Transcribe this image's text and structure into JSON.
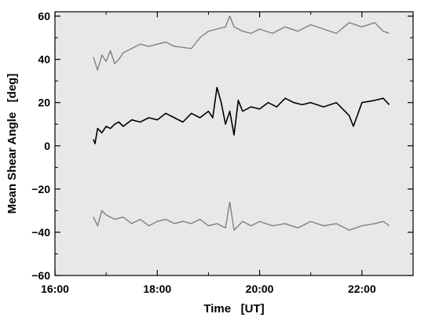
{
  "chart_data": {
    "type": "line",
    "xlabel": "Time   [UT]",
    "ylabel": "Mean Shear Angle   [deg]",
    "title": "",
    "xlim": [
      "16:00",
      "23:00"
    ],
    "ylim": [
      -60,
      62
    ],
    "xticks": [
      "16:00",
      "18:00",
      "20:00",
      "22:00"
    ],
    "yticks": [
      -60,
      -40,
      -20,
      0,
      20,
      40,
      60
    ],
    "grid": false,
    "legend": "none",
    "plot_background": "#e8e8e8",
    "series": [
      {
        "color": "#808080",
        "x": [
          "16:45",
          "16:50",
          "16:55",
          "17:00",
          "17:05",
          "17:10",
          "17:15",
          "17:20",
          "17:25",
          "17:30",
          "17:40",
          "17:50",
          "18:00",
          "18:10",
          "18:20",
          "18:40",
          "18:50",
          "19:00",
          "19:10",
          "19:20",
          "19:25",
          "19:30",
          "19:40",
          "19:50",
          "20:00",
          "20:15",
          "20:30",
          "20:45",
          "21:00",
          "21:15",
          "21:30",
          "21:45",
          "22:00",
          "22:15",
          "22:25",
          "22:32"
        ],
        "y": [
          41,
          35,
          42,
          39,
          44,
          38,
          40,
          43,
          44,
          45,
          47,
          46,
          47,
          48,
          46,
          45,
          50,
          53,
          54,
          55,
          60,
          55,
          53,
          52,
          54,
          52,
          55,
          53,
          56,
          54,
          52,
          57,
          55,
          57,
          53,
          52
        ]
      },
      {
        "color": "#000000",
        "x": [
          "16:45",
          "16:47",
          "16:50",
          "16:55",
          "17:00",
          "17:05",
          "17:10",
          "17:15",
          "17:20",
          "17:30",
          "17:40",
          "17:50",
          "18:00",
          "18:10",
          "18:20",
          "18:30",
          "18:40",
          "18:50",
          "19:00",
          "19:05",
          "19:10",
          "19:15",
          "19:20",
          "19:25",
          "19:30",
          "19:35",
          "19:40",
          "19:50",
          "20:00",
          "20:10",
          "20:20",
          "20:30",
          "20:40",
          "20:50",
          "21:00",
          "21:15",
          "21:30",
          "21:45",
          "21:50",
          "22:00",
          "22:15",
          "22:25",
          "22:32"
        ],
        "y": [
          3,
          1,
          8,
          6,
          9,
          8,
          10,
          11,
          9,
          12,
          11,
          13,
          12,
          15,
          13,
          11,
          15,
          13,
          16,
          13,
          27,
          20,
          10,
          16,
          5,
          21,
          16,
          18,
          17,
          20,
          18,
          22,
          20,
          19,
          20,
          18,
          20,
          14,
          9,
          20,
          21,
          22,
          19
        ]
      },
      {
        "color": "#808080",
        "x": [
          "16:45",
          "16:50",
          "16:55",
          "17:00",
          "17:10",
          "17:20",
          "17:30",
          "17:40",
          "17:50",
          "18:00",
          "18:10",
          "18:20",
          "18:30",
          "18:40",
          "18:50",
          "19:00",
          "19:10",
          "19:20",
          "19:25",
          "19:30",
          "19:40",
          "19:50",
          "20:00",
          "20:15",
          "20:30",
          "20:45",
          "21:00",
          "21:15",
          "21:30",
          "21:45",
          "22:00",
          "22:15",
          "22:25",
          "22:32"
        ],
        "y": [
          -33,
          -37,
          -30,
          -32,
          -34,
          -33,
          -36,
          -34,
          -37,
          -35,
          -34,
          -36,
          -35,
          -36,
          -34,
          -37,
          -36,
          -38,
          -26,
          -39,
          -35,
          -37,
          -35,
          -37,
          -36,
          -38,
          -35,
          -37,
          -36,
          -39,
          -37,
          -36,
          -35,
          -37
        ]
      }
    ]
  }
}
